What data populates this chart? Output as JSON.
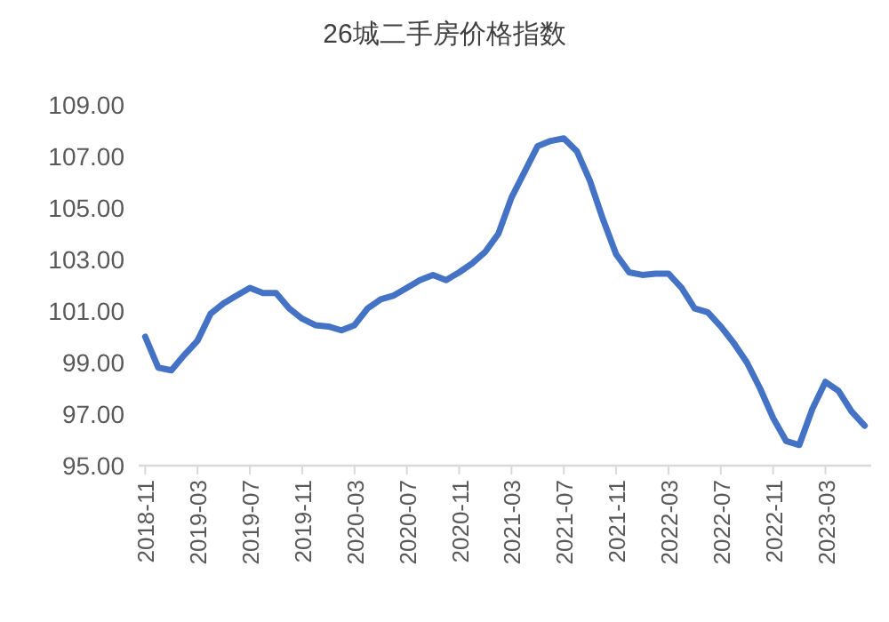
{
  "chart_data": {
    "type": "line",
    "title": "26城二手房价格指数",
    "categories": [
      "2018-11",
      null,
      null,
      null,
      "2019-03",
      null,
      null,
      null,
      "2019-07",
      null,
      null,
      null,
      "2019-11",
      null,
      null,
      null,
      "2020-03",
      null,
      null,
      null,
      "2020-07",
      null,
      null,
      null,
      "2020-11",
      null,
      null,
      null,
      "2021-03",
      null,
      null,
      null,
      "2021-07",
      null,
      null,
      null,
      "2021-11",
      null,
      null,
      null,
      "2022-03",
      null,
      null,
      null,
      "2022-07",
      null,
      null,
      null,
      "2022-11",
      null,
      null,
      null,
      "2023-03",
      null,
      null,
      null
    ],
    "series": [
      {
        "color": "#4472c4",
        "values": [
          100.0,
          98.8,
          98.7,
          99.3,
          99.85,
          100.9,
          101.3,
          101.6,
          101.9,
          101.7,
          101.7,
          101.1,
          100.7,
          100.45,
          100.4,
          100.25,
          100.45,
          101.1,
          101.45,
          101.6,
          101.9,
          102.2,
          102.4,
          102.2,
          102.5,
          102.85,
          103.3,
          104.0,
          105.4,
          106.4,
          107.4,
          107.6,
          107.7,
          107.2,
          106.05,
          104.55,
          103.2,
          102.5,
          102.4,
          102.45,
          102.45,
          101.9,
          101.1,
          100.95,
          100.4,
          99.75,
          99.0,
          98.0,
          96.85,
          95.95,
          95.8,
          97.2,
          98.25,
          97.9,
          97.1,
          96.55
        ]
      }
    ],
    "ylim": [
      95,
      109
    ],
    "yticks": [
      {
        "value": 95,
        "label": "95.00"
      },
      {
        "value": 97,
        "label": "97.00"
      },
      {
        "value": 99,
        "label": "99.00"
      },
      {
        "value": 101,
        "label": "101.00"
      },
      {
        "value": 103,
        "label": "103.00"
      },
      {
        "value": 105,
        "label": "105.00"
      },
      {
        "value": 107,
        "label": "107.00"
      },
      {
        "value": 109,
        "label": "109.00"
      }
    ]
  }
}
